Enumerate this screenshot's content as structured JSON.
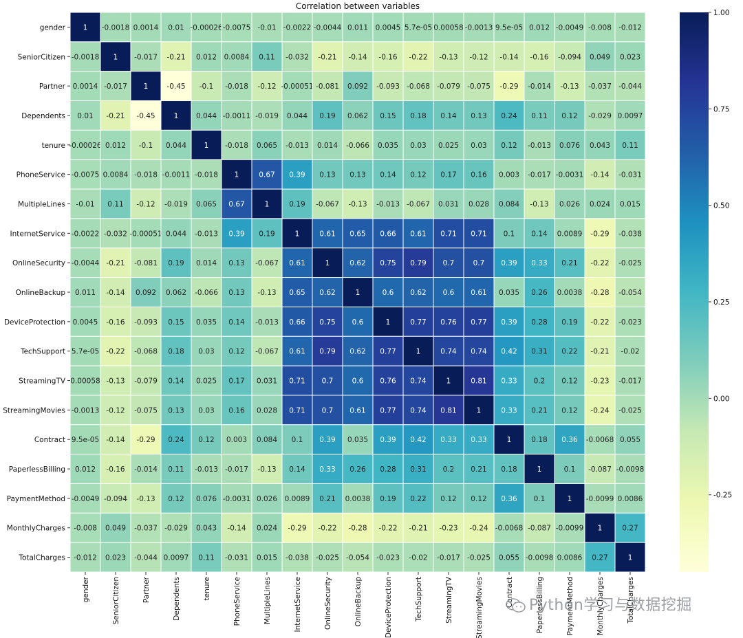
{
  "chart_data": {
    "type": "heatmap",
    "title": "Correlation between variables",
    "variables": [
      "gender",
      "SeniorCitizen",
      "Partner",
      "Dependents",
      "tenure",
      "PhoneService",
      "MultipleLines",
      "InternetService",
      "OnlineSecurity",
      "OnlineBackup",
      "DeviceProtection",
      "TechSupport",
      "StreamingTV",
      "StreamingMovies",
      "Contract",
      "PaperlessBilling",
      "PaymentMethod",
      "MonthlyCharges",
      "TotalCharges"
    ],
    "values": [
      [
        "1",
        "-0.0018",
        "0.0014",
        "0.01",
        "-0.00026",
        "-0.0075",
        "-0.01",
        "-0.0022",
        "-0.0044",
        "0.011",
        "0.0045",
        "5.7e-05",
        "0.00058",
        "-0.0013",
        "9.5e-05",
        "0.012",
        "-0.0049",
        "-0.008",
        "-0.012"
      ],
      [
        "-0.0018",
        "1",
        "-0.017",
        "-0.21",
        "0.012",
        "0.0084",
        "0.11",
        "-0.032",
        "-0.21",
        "-0.14",
        "-0.16",
        "-0.22",
        "-0.13",
        "-0.12",
        "-0.14",
        "-0.16",
        "-0.094",
        "0.049",
        "0.023"
      ],
      [
        "0.0014",
        "-0.017",
        "1",
        "-0.45",
        "-0.1",
        "-0.018",
        "-0.12",
        "-0.00051",
        "-0.081",
        "0.092",
        "-0.093",
        "-0.068",
        "-0.079",
        "-0.075",
        "-0.29",
        "-0.014",
        "-0.13",
        "-0.037",
        "-0.044"
      ],
      [
        "0.01",
        "-0.21",
        "-0.45",
        "1",
        "0.044",
        "-0.0011",
        "-0.019",
        "0.044",
        "0.19",
        "0.062",
        "0.15",
        "0.18",
        "0.14",
        "0.13",
        "0.24",
        "0.11",
        "0.12",
        "-0.029",
        "0.0097"
      ],
      [
        "-0.00026",
        "0.012",
        "-0.1",
        "0.044",
        "1",
        "-0.018",
        "0.065",
        "-0.013",
        "0.014",
        "-0.066",
        "0.035",
        "0.03",
        "0.025",
        "0.03",
        "0.12",
        "-0.013",
        "0.076",
        "0.043",
        "0.11"
      ],
      [
        "-0.0075",
        "0.0084",
        "-0.018",
        "-0.0011",
        "-0.018",
        "1",
        "0.67",
        "0.39",
        "0.13",
        "0.13",
        "0.14",
        "0.12",
        "0.17",
        "0.16",
        "0.003",
        "-0.017",
        "-0.0031",
        "-0.14",
        "-0.031"
      ],
      [
        "-0.01",
        "0.11",
        "-0.12",
        "-0.019",
        "0.065",
        "0.67",
        "1",
        "0.19",
        "-0.067",
        "-0.13",
        "-0.013",
        "-0.067",
        "0.031",
        "0.028",
        "0.084",
        "-0.13",
        "0.026",
        "0.024",
        "0.015"
      ],
      [
        "-0.0022",
        "-0.032",
        "-0.00051",
        "0.044",
        "-0.013",
        "0.39",
        "0.19",
        "1",
        "0.61",
        "0.65",
        "0.66",
        "0.61",
        "0.71",
        "0.71",
        "0.1",
        "0.14",
        "0.0089",
        "-0.29",
        "-0.038"
      ],
      [
        "-0.0044",
        "-0.21",
        "-0.081",
        "0.19",
        "0.014",
        "0.13",
        "-0.067",
        "0.61",
        "1",
        "0.62",
        "0.75",
        "0.79",
        "0.7",
        "0.7",
        "0.39",
        "0.33",
        "0.21",
        "-0.22",
        "-0.025"
      ],
      [
        "0.011",
        "-0.14",
        "0.092",
        "0.062",
        "-0.066",
        "0.13",
        "-0.13",
        "0.65",
        "0.62",
        "1",
        "0.6",
        "0.62",
        "0.6",
        "0.61",
        "0.035",
        "0.26",
        "0.0038",
        "-0.28",
        "-0.054"
      ],
      [
        "0.0045",
        "-0.16",
        "-0.093",
        "0.15",
        "0.035",
        "0.14",
        "-0.013",
        "0.66",
        "0.75",
        "0.6",
        "1",
        "0.77",
        "0.76",
        "0.77",
        "0.39",
        "0.28",
        "0.19",
        "-0.22",
        "-0.023"
      ],
      [
        "5.7e-05",
        "-0.22",
        "-0.068",
        "0.18",
        "0.03",
        "0.12",
        "-0.067",
        "0.61",
        "0.79",
        "0.62",
        "0.77",
        "1",
        "0.74",
        "0.74",
        "0.42",
        "0.31",
        "0.22",
        "-0.21",
        "-0.02"
      ],
      [
        "0.00058",
        "-0.13",
        "-0.079",
        "0.14",
        "0.025",
        "0.17",
        "0.031",
        "0.71",
        "0.7",
        "0.6",
        "0.76",
        "0.74",
        "1",
        "0.81",
        "0.33",
        "0.2",
        "0.12",
        "-0.23",
        "-0.017"
      ],
      [
        "-0.0013",
        "-0.12",
        "-0.075",
        "0.13",
        "0.03",
        "0.16",
        "0.028",
        "0.71",
        "0.7",
        "0.61",
        "0.77",
        "0.74",
        "0.81",
        "1",
        "0.33",
        "0.21",
        "0.12",
        "-0.24",
        "-0.025"
      ],
      [
        "9.5e-05",
        "-0.14",
        "-0.29",
        "0.24",
        "0.12",
        "0.003",
        "0.084",
        "0.1",
        "0.39",
        "0.035",
        "0.39",
        "0.42",
        "0.33",
        "0.33",
        "1",
        "0.18",
        "0.36",
        "-0.0068",
        "0.055"
      ],
      [
        "0.012",
        "-0.16",
        "-0.014",
        "0.11",
        "-0.013",
        "-0.017",
        "-0.13",
        "0.14",
        "0.33",
        "0.26",
        "0.28",
        "0.31",
        "0.2",
        "0.21",
        "0.18",
        "1",
        "0.1",
        "-0.087",
        "-0.0098"
      ],
      [
        "-0.0049",
        "-0.094",
        "-0.13",
        "0.12",
        "0.076",
        "-0.0031",
        "0.026",
        "0.0089",
        "0.21",
        "0.0038",
        "0.19",
        "0.22",
        "0.12",
        "0.12",
        "0.36",
        "0.1",
        "1",
        "-0.0099",
        "0.0086"
      ],
      [
        "-0.008",
        "0.049",
        "-0.037",
        "-0.029",
        "0.043",
        "-0.14",
        "0.024",
        "-0.29",
        "-0.22",
        "-0.28",
        "-0.22",
        "-0.21",
        "-0.23",
        "-0.24",
        "-0.0068",
        "-0.087",
        "-0.0099",
        "1",
        "0.27"
      ],
      [
        "-0.012",
        "0.023",
        "-0.044",
        "0.0097",
        "0.11",
        "-0.031",
        "0.015",
        "-0.038",
        "-0.025",
        "-0.054",
        "-0.023",
        "-0.02",
        "-0.017",
        "-0.025",
        "0.055",
        "-0.0098",
        "0.0086",
        "0.27",
        "1"
      ]
    ],
    "colormap": "YlGnBu",
    "vmin": -0.45,
    "vmax": 1.0,
    "colorbar_ticks": [
      "1.00",
      "0.75",
      "0.50",
      "0.25",
      "0.00",
      "-0.25"
    ],
    "colorbar_tick_values": [
      1.0,
      0.75,
      0.5,
      0.25,
      0.0,
      -0.25
    ]
  },
  "watermark": {
    "text": "Python学习与数据挖掘",
    "icon": "wechat-icon"
  }
}
